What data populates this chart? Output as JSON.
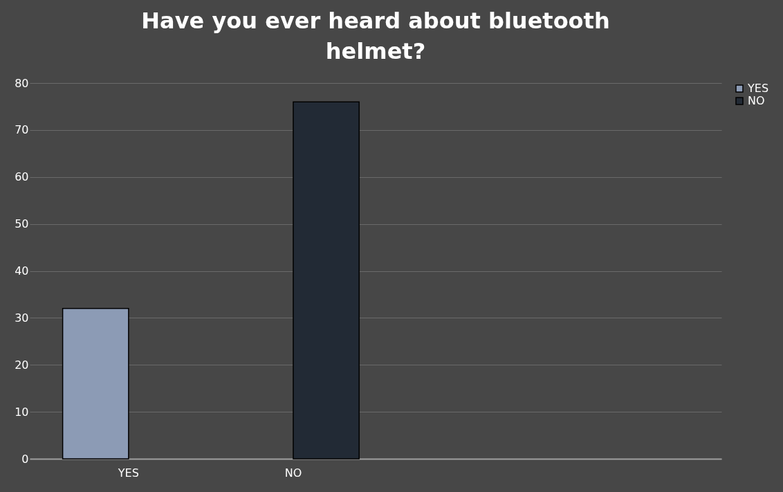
{
  "chart_data": {
    "type": "bar",
    "title": "Have you ever heard about bluetooth helmet?",
    "categories": [
      "YES",
      "NO",
      null,
      null
    ],
    "series": [
      {
        "name": "YES",
        "color": "#8c9bb5",
        "values": [
          32,
          null,
          null,
          null
        ]
      },
      {
        "name": "NO",
        "color": "#222a35",
        "values": [
          null,
          76,
          null,
          null
        ]
      }
    ],
    "ylim": [
      0,
      80
    ],
    "yticks": [
      0,
      10,
      20,
      30,
      40,
      50,
      60,
      70,
      80
    ],
    "grid": "y",
    "legend": "right"
  }
}
